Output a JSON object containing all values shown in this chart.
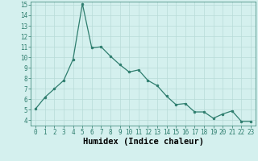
{
  "x": [
    0,
    1,
    2,
    3,
    4,
    5,
    6,
    7,
    8,
    9,
    10,
    11,
    12,
    13,
    14,
    15,
    16,
    17,
    18,
    19,
    20,
    21,
    22,
    23
  ],
  "y": [
    5.1,
    6.2,
    7.0,
    7.8,
    9.8,
    15.1,
    10.9,
    11.0,
    10.1,
    9.3,
    8.6,
    8.8,
    7.8,
    7.3,
    6.3,
    5.5,
    5.6,
    4.8,
    4.8,
    4.2,
    4.6,
    4.9,
    3.9,
    3.9
  ],
  "xlabel": "Humidex (Indice chaleur)",
  "ylim_min": 3.5,
  "ylim_max": 15.3,
  "xlim_min": -0.5,
  "xlim_max": 23.5,
  "yticks": [
    4,
    5,
    6,
    7,
    8,
    9,
    10,
    11,
    12,
    13,
    14,
    15
  ],
  "xticks": [
    0,
    1,
    2,
    3,
    4,
    5,
    6,
    7,
    8,
    9,
    10,
    11,
    12,
    13,
    14,
    15,
    16,
    17,
    18,
    19,
    20,
    21,
    22,
    23
  ],
  "line_color": "#2e7d6e",
  "marker_color": "#2e7d6e",
  "bg_color": "#d4f0ee",
  "grid_color": "#b8dbd8",
  "xlabel_fontsize": 7.5,
  "tick_fontsize": 5.5
}
